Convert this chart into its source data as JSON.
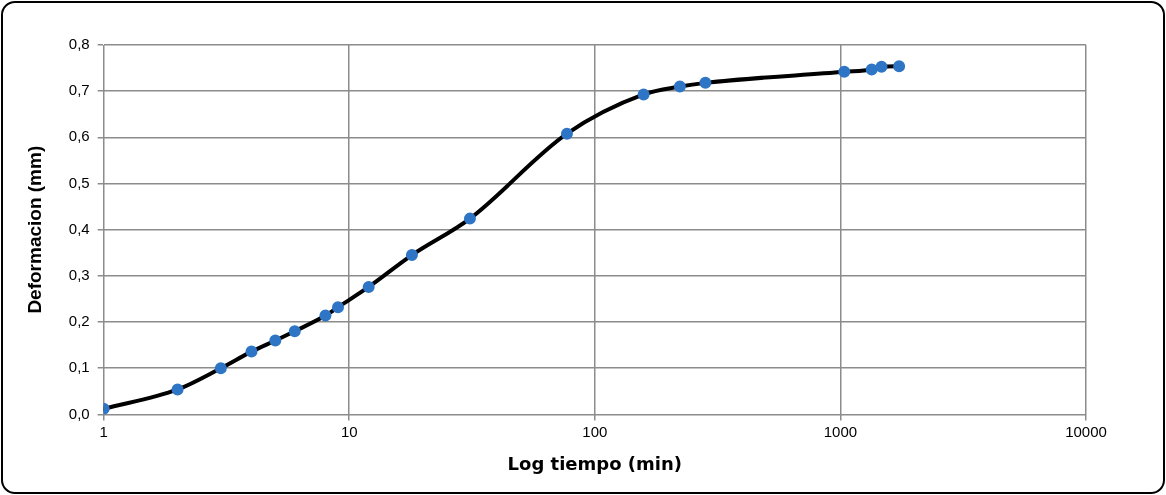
{
  "chart_data": {
    "type": "line",
    "xlabel": "Log tiempo (min)",
    "ylabel": "Deformacion (mm)",
    "log": "x",
    "grid": true,
    "legend": false,
    "marker": "circle",
    "line_style": "solid",
    "xlim": [
      1,
      10000
    ],
    "xticks": [
      1,
      10,
      100,
      1000,
      10000
    ],
    "ylim": [
      0,
      0.8
    ],
    "yticks": [
      {
        "value": 0,
        "label": "0,0"
      },
      {
        "value": 0.1,
        "label": "0,1"
      },
      {
        "value": 0.2,
        "label": "0,2"
      },
      {
        "value": 0.3,
        "label": "0,3"
      },
      {
        "value": 0.4,
        "label": "0,4"
      },
      {
        "value": 0.5,
        "label": "0,5"
      },
      {
        "value": 0.6,
        "label": "0,6"
      },
      {
        "value": 0.7,
        "label": "0,7"
      },
      {
        "value": 0.8,
        "label": "0,8"
      }
    ],
    "series": [
      {
        "color": "#000000",
        "colors": [
          "#2e75c6",
          "#2e75c6",
          "#2e75c6",
          "#2e75c6",
          "#2e75c6",
          "#2e75c6",
          "#2e75c6",
          "#2e75c6",
          "#2e75c6",
          "#2e75c6",
          "#2e75c6",
          "#2e75c6",
          "#2e75c6",
          "#2e75c6",
          "#2e75c6",
          "#2e75c6",
          "#2e75c6",
          "#2e75c6",
          "#2e75c6"
        ],
        "x": [
          1,
          2,
          3,
          4,
          5,
          6,
          8,
          9,
          12,
          18,
          31,
          77,
          158,
          222,
          282,
          1037,
          1341,
          1470,
          1734
        ],
        "values": [
          0.012,
          0.054,
          0.1,
          0.136,
          0.16,
          0.18,
          0.214,
          0.232,
          0.276,
          0.345,
          0.424,
          0.608,
          0.693,
          0.71,
          0.718,
          0.742,
          0.747,
          0.753,
          0.754
        ]
      }
    ]
  }
}
